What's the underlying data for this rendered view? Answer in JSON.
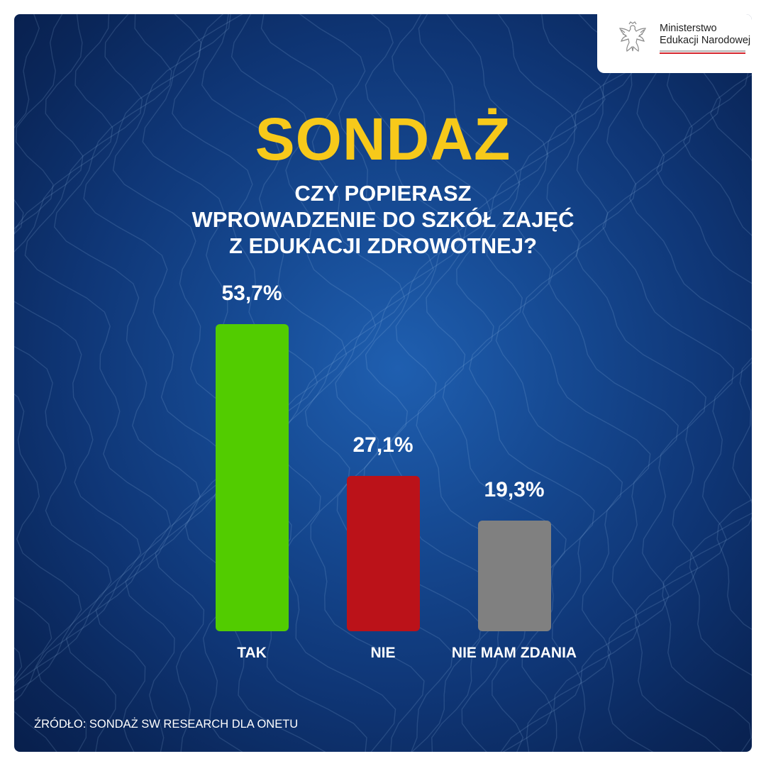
{
  "logo": {
    "line1": "Ministerstwo",
    "line2": "Edukacji Narodowej",
    "icon": "polish-eagle-emblem"
  },
  "title": "SONDAŻ",
  "question": {
    "lines": [
      "CZY POPIERASZ",
      "WPROWADZENIE DO SZKÓŁ ZAJĘĆ",
      "Z EDUKACJI ZDROWOTNEJ?"
    ]
  },
  "chart_data": {
    "type": "bar",
    "title": "SONDAŻ",
    "categories": [
      "TAK",
      "NIE",
      "NIE MAM ZDANIA"
    ],
    "values": [
      53.7,
      27.1,
      19.3
    ],
    "value_labels": [
      "53,7%",
      "27,1%",
      "19,3%"
    ],
    "unit": "%",
    "colors": [
      "#52cc00",
      "#bb1219",
      "#808080"
    ],
    "ylim": [
      0,
      53.7
    ],
    "grid": false,
    "legend": "none"
  },
  "colors": {
    "background": "#0f3676",
    "title": "#f7c91a",
    "text": "#ffffff"
  },
  "source": "ŹRÓDŁO: SONDAŻ SW RESEARCH DLA ONETU"
}
